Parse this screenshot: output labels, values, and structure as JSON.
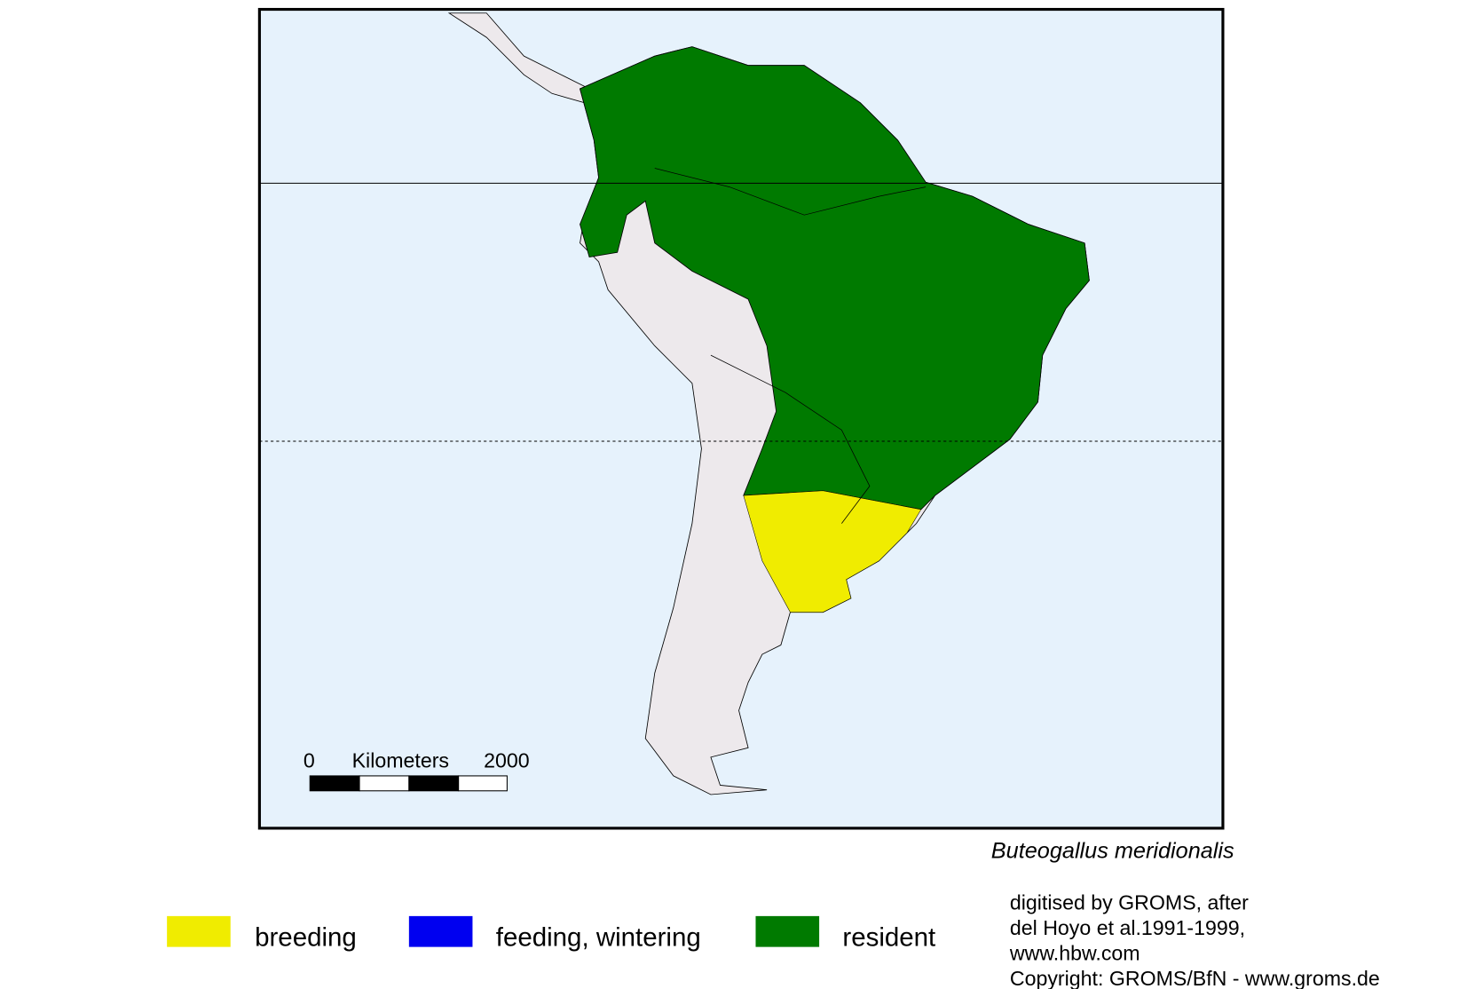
{
  "map": {
    "scale_bar": {
      "start": "0",
      "unit": "Kilometers",
      "end": "2000"
    },
    "species": "Buteogallus meridionalis",
    "legend": [
      {
        "label": "breeding",
        "color": "#f0ec00"
      },
      {
        "label": "feeding, wintering",
        "color": "#0000f0"
      },
      {
        "label": "resident",
        "color": "#007a00"
      }
    ],
    "credits": [
      "digitised by GROMS, after",
      "del Hoyo et al.1991-1999,",
      "www.hbw.com",
      "Copyright: GROMS/BfN - www.groms.de"
    ]
  }
}
